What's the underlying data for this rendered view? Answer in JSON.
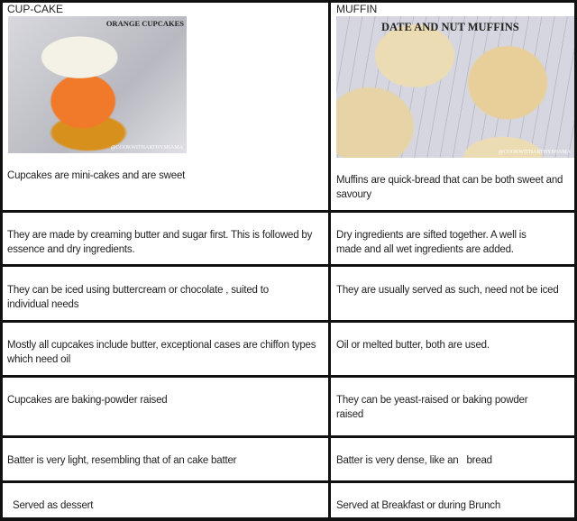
{
  "headers": {
    "left": "CUP-CAKE",
    "right": "MUFFIN"
  },
  "images": {
    "left": {
      "title": "ORANGE CUPCAKES",
      "watermark": "@COOKWITHARTHYSHAMA"
    },
    "right": {
      "title": "DATE AND NUT MUFFINS",
      "watermark": "@COOKWITHARTHYSHAMA"
    }
  },
  "rows": [
    {
      "cupcake": "Cupcakes are mini-cakes and are sweet",
      "muffin": "Muffins are quick-bread that can be both sweet and savoury"
    },
    {
      "cupcake": "They are made by creaming butter and sugar first.  This is followed by essence and dry ingredients.",
      "muffin": "Dry ingredients are sifted together.  A well is made and all wet ingredients are added."
    },
    {
      "cupcake": "They can be iced using buttercream or chocolate , suited to individual needs",
      "muffin": "They are usually served as such, need not be iced"
    },
    {
      "cupcake": "Mostly all cupcakes include butter, exceptional cases are chiffon types which need oil",
      "muffin": "Oil or melted butter, both are used."
    },
    {
      "cupcake": "Cupcakes are baking-powder raised",
      "muffin": "They can be yeast-raised or baking powder raised"
    },
    {
      "cupcake": "Batter is very light, resembling that of an cake batter",
      "muffin": "Batter is very dense, like an   bread"
    },
    {
      "cupcake": "Served as dessert",
      "muffin": "Served at Breakfast or during Brunch"
    }
  ]
}
